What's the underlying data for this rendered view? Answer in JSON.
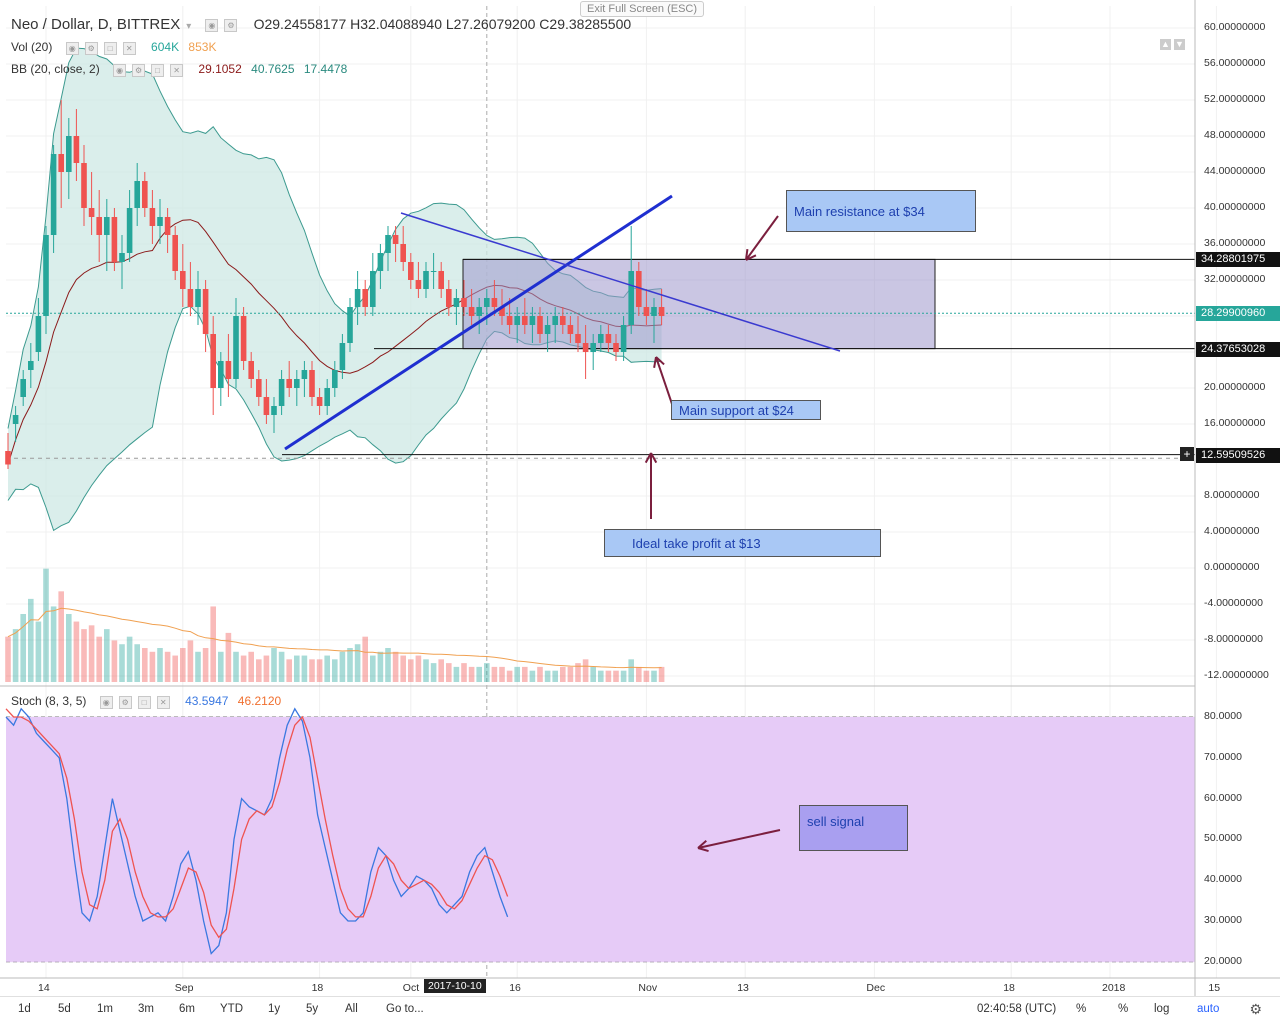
{
  "header": {
    "exit_fullscreen": "Exit Full Screen (ESC)",
    "title": "Neo / Dollar, D, BITTREX",
    "ohlc": "O29.24558177  H32.04088940  L27.26079200  C29.38285500",
    "vol_label": "Vol (20)",
    "vol_value_1": "604K",
    "vol_value_2": "853K",
    "bb_label": "BB (20, close, 2)",
    "bb_mid": "29.1052",
    "bb_upper": "40.7625",
    "bb_lower": "17.4478",
    "stoch_label": "Stoch (8, 3, 5)",
    "stoch_k": "43.5947",
    "stoch_d": "46.2120"
  },
  "colors": {
    "bull": "#26a69a",
    "bear": "#ef5350",
    "band_fill": "#cde8e4",
    "band_line": "#3c9a8f",
    "ma": "#8b1a1a",
    "trend": "#1f2fd0",
    "box_fill": "#9f97cc",
    "stoch_bg": "#e6cbf7",
    "stoch_k": "#3a78e0",
    "stoch_d": "#ef5350",
    "arrow": "#7b1f3e",
    "vol_ma": "#f0a050"
  },
  "price_axis": {
    "ticks": [
      "60.00000000",
      "56.00000000",
      "52.00000000",
      "48.00000000",
      "44.00000000",
      "40.00000000",
      "36.00000000",
      "32.00000000",
      "28.00000000",
      "24.00000000",
      "20.00000000",
      "16.00000000",
      "12.00000000",
      "8.00000000",
      "4.00000000",
      "0.00000000",
      "-4.00000000",
      "-8.00000000",
      "-12.00000000"
    ],
    "tick_values": [
      60,
      56,
      52,
      48,
      44,
      40,
      36,
      32,
      28,
      24,
      20,
      16,
      12,
      8,
      4,
      0,
      -4,
      -8,
      -12
    ],
    "labels": [
      {
        "text": "34.28801975",
        "value": 34.288,
        "kind": "line"
      },
      {
        "text": "28.29900960",
        "value": 28.299,
        "kind": "current"
      },
      {
        "text": "24.37653028",
        "value": 24.3765,
        "kind": "line"
      },
      {
        "text": "12.59509526",
        "value": 12.595,
        "kind": "line"
      }
    ]
  },
  "stoch_axis": {
    "ticks": [
      "80.0000",
      "70.0000",
      "60.0000",
      "50.0000",
      "40.0000",
      "30.0000",
      "20.0000"
    ],
    "tick_values": [
      80,
      70,
      60,
      50,
      40,
      30,
      20
    ],
    "bands": [
      80,
      20
    ]
  },
  "time_axis": {
    "ticks": [
      {
        "label": "14",
        "day": 5
      },
      {
        "label": "Sep",
        "day": 23
      },
      {
        "label": "18",
        "day": 41
      },
      {
        "label": "Oct",
        "day": 53
      },
      {
        "label": "16",
        "day": 67
      },
      {
        "label": "Nov",
        "day": 84
      },
      {
        "label": "13",
        "day": 97
      },
      {
        "label": "Dec",
        "day": 114
      },
      {
        "label": "18",
        "day": 132
      },
      {
        "label": "2018",
        "day": 145
      },
      {
        "label": "15",
        "day": 159
      }
    ],
    "cursor_label": "2017-10-10",
    "cursor_day": 63
  },
  "annotations": {
    "resistance": "Main resistance at $34",
    "support": "Main support at $24",
    "take_profit": "Ideal take profit at $13",
    "sell_signal": "sell signal"
  },
  "chart_data": {
    "type": "candlestick",
    "title": "Neo / Dollar, D, BITTREX",
    "ylim": [
      -12,
      60
    ],
    "first_day": "2017-08-10",
    "candles": [
      [
        13,
        15,
        11,
        11.5
      ],
      [
        16,
        18,
        14,
        17
      ],
      [
        19,
        22,
        18,
        21
      ],
      [
        22,
        25,
        20,
        23
      ],
      [
        24,
        30,
        23,
        28
      ],
      [
        28,
        38,
        26,
        37
      ],
      [
        37,
        47,
        35,
        46
      ],
      [
        46,
        52,
        40,
        44
      ],
      [
        44,
        50,
        41,
        48
      ],
      [
        48,
        51,
        43,
        45
      ],
      [
        45,
        47,
        38,
        40
      ],
      [
        40,
        44,
        37,
        39
      ],
      [
        39,
        42,
        34,
        37
      ],
      [
        37,
        41,
        33,
        39
      ],
      [
        39,
        40,
        33,
        34
      ],
      [
        34,
        37,
        31,
        35
      ],
      [
        35,
        42,
        34,
        40
      ],
      [
        40,
        45,
        38,
        43
      ],
      [
        43,
        44,
        39,
        40
      ],
      [
        40,
        42,
        36,
        38
      ],
      [
        38,
        41,
        36,
        39
      ],
      [
        39,
        40,
        35,
        37
      ],
      [
        37,
        38,
        32,
        33
      ],
      [
        33,
        36,
        29,
        31
      ],
      [
        31,
        34,
        28,
        29
      ],
      [
        29,
        33,
        27,
        31
      ],
      [
        31,
        32,
        24,
        26
      ],
      [
        26,
        28,
        17,
        20
      ],
      [
        20,
        24,
        18,
        23
      ],
      [
        23,
        26,
        19,
        21
      ],
      [
        21,
        30,
        20,
        28
      ],
      [
        28,
        29,
        22,
        23
      ],
      [
        23,
        24,
        20,
        21
      ],
      [
        21,
        22,
        18,
        19
      ],
      [
        19,
        21,
        16,
        17
      ],
      [
        17,
        19,
        15,
        18
      ],
      [
        18,
        22,
        17,
        21
      ],
      [
        21,
        23,
        19,
        20
      ],
      [
        20,
        22,
        18,
        21
      ],
      [
        21,
        23,
        19,
        22
      ],
      [
        22,
        23,
        18,
        19
      ],
      [
        19,
        20,
        17,
        18
      ],
      [
        18,
        21,
        17,
        20
      ],
      [
        20,
        23,
        19,
        22
      ],
      [
        22,
        26,
        21,
        25
      ],
      [
        25,
        30,
        24,
        29
      ],
      [
        29,
        33,
        27,
        31
      ],
      [
        31,
        32,
        28,
        29
      ],
      [
        29,
        35,
        28,
        33
      ],
      [
        33,
        36,
        31,
        35
      ],
      [
        35,
        38,
        33,
        37
      ],
      [
        37,
        38,
        34,
        36
      ],
      [
        36,
        38,
        33,
        34
      ],
      [
        34,
        35,
        31,
        32
      ],
      [
        32,
        34,
        30,
        31
      ],
      [
        31,
        34,
        30,
        33
      ],
      [
        33,
        35,
        31,
        33
      ],
      [
        33,
        34,
        30,
        31
      ],
      [
        31,
        32,
        28,
        29
      ],
      [
        29,
        31,
        27,
        30
      ],
      [
        30,
        32,
        28,
        29
      ],
      [
        29,
        31,
        27,
        28
      ],
      [
        28,
        30,
        26,
        29
      ],
      [
        29,
        31,
        27,
        30
      ],
      [
        30,
        32,
        28,
        29
      ],
      [
        29,
        31,
        27,
        28
      ],
      [
        28,
        30,
        26,
        27
      ],
      [
        27,
        29,
        25,
        28
      ],
      [
        28,
        30,
        26,
        27
      ],
      [
        27,
        29,
        25,
        28
      ],
      [
        28,
        29,
        25,
        26
      ],
      [
        26,
        28,
        24,
        27
      ],
      [
        27,
        29,
        25,
        28
      ],
      [
        28,
        29,
        26,
        27
      ],
      [
        27,
        28,
        25,
        26
      ],
      [
        26,
        28,
        24,
        25
      ],
      [
        25,
        27,
        21,
        24
      ],
      [
        24,
        26,
        22,
        25
      ],
      [
        25,
        27,
        24,
        26
      ],
      [
        26,
        27,
        24,
        25
      ],
      [
        25,
        26,
        23,
        24
      ],
      [
        24,
        28,
        23,
        27
      ],
      [
        27,
        38,
        26,
        33
      ],
      [
        33,
        34,
        28,
        29
      ],
      [
        29,
        31,
        27,
        28
      ],
      [
        28,
        30,
        25,
        29
      ],
      [
        29,
        31,
        27,
        28
      ]
    ],
    "volume_scale_max": 45,
    "volume": [
      12,
      14,
      18,
      22,
      16,
      30,
      20,
      24,
      18,
      16,
      14,
      15,
      12,
      14,
      11,
      10,
      12,
      10,
      9,
      8,
      9,
      8,
      7,
      9,
      11,
      8,
      9,
      20,
      8,
      13,
      8,
      7,
      8,
      6,
      7,
      9,
      8,
      6,
      7,
      7,
      6,
      6,
      7,
      6,
      8,
      9,
      10,
      12,
      7,
      8,
      9,
      8,
      7,
      6,
      7,
      6,
      5,
      6,
      5,
      4,
      5,
      4,
      4,
      5,
      4,
      4,
      3,
      4,
      4,
      3,
      4,
      3,
      3,
      4,
      4,
      5,
      6,
      4,
      3,
      3,
      3,
      3,
      6,
      4,
      3,
      3,
      4
    ],
    "stoch_k": [
      80,
      78,
      82,
      80,
      76,
      74,
      72,
      70,
      60,
      45,
      32,
      30,
      36,
      48,
      60,
      52,
      44,
      36,
      30,
      31,
      32,
      30,
      36,
      44,
      47,
      40,
      30,
      22,
      24,
      32,
      50,
      60,
      58,
      57,
      56,
      60,
      70,
      78,
      82,
      79,
      70,
      56,
      48,
      40,
      32,
      30,
      30,
      32,
      42,
      48,
      46,
      40,
      36,
      38,
      41,
      40,
      38,
      34,
      32,
      34,
      36,
      42,
      46,
      48,
      42,
      36,
      31
    ],
    "stoch_d": [
      82,
      80,
      80,
      79,
      77,
      75,
      73,
      71,
      65,
      55,
      42,
      34,
      33,
      40,
      52,
      55,
      50,
      42,
      36,
      32,
      31,
      31,
      33,
      38,
      43,
      42,
      37,
      29,
      26,
      28,
      38,
      50,
      55,
      57,
      56,
      58,
      64,
      72,
      78,
      80,
      75,
      65,
      55,
      46,
      38,
      33,
      31,
      31,
      36,
      43,
      46,
      44,
      40,
      38,
      39,
      40,
      39,
      37,
      34,
      33,
      35,
      39,
      43,
      46,
      45,
      41,
      36
    ]
  }
}
